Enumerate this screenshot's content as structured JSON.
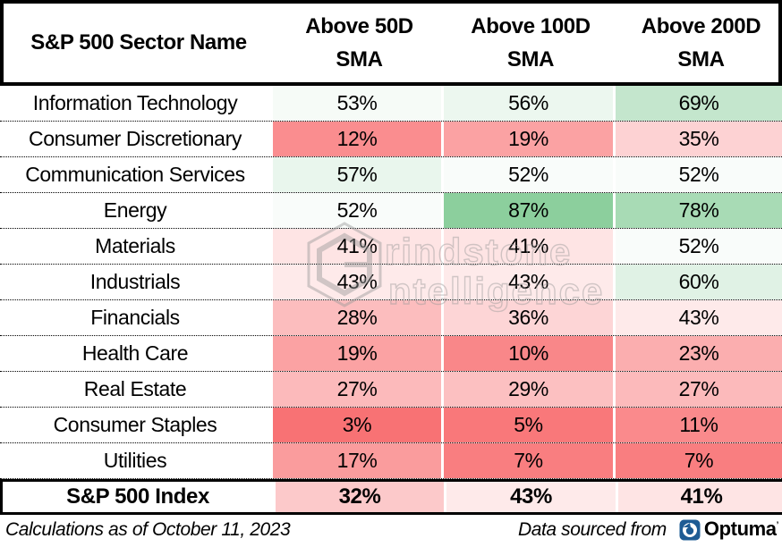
{
  "table": {
    "header": {
      "col0": "S&P 500 Sector Name",
      "cols": [
        {
          "line1": "Above 50D",
          "line2": "SMA"
        },
        {
          "line1": "Above 100D",
          "line2": "SMA"
        },
        {
          "line1": "Above 200D",
          "line2": "SMA"
        }
      ]
    },
    "rows": [
      {
        "name": "Information Technology",
        "cells": [
          "53%",
          "56%",
          "69%"
        ],
        "values": [
          53,
          56,
          69
        ]
      },
      {
        "name": "Consumer Discretionary",
        "cells": [
          "12%",
          "19%",
          "35%"
        ],
        "values": [
          12,
          19,
          35
        ]
      },
      {
        "name": "Communication Services",
        "cells": [
          "57%",
          "52%",
          "52%"
        ],
        "values": [
          57,
          52,
          52
        ]
      },
      {
        "name": "Energy",
        "cells": [
          "52%",
          "87%",
          "78%"
        ],
        "values": [
          52,
          87,
          78
        ]
      },
      {
        "name": "Materials",
        "cells": [
          "41%",
          "41%",
          "52%"
        ],
        "values": [
          41,
          41,
          52
        ]
      },
      {
        "name": "Industrials",
        "cells": [
          "43%",
          "43%",
          "60%"
        ],
        "values": [
          43,
          43,
          60
        ]
      },
      {
        "name": "Financials",
        "cells": [
          "28%",
          "36%",
          "43%"
        ],
        "values": [
          28,
          36,
          43
        ]
      },
      {
        "name": "Health Care",
        "cells": [
          "19%",
          "10%",
          "23%"
        ],
        "values": [
          19,
          10,
          23
        ]
      },
      {
        "name": "Real Estate",
        "cells": [
          "27%",
          "29%",
          "27%"
        ],
        "values": [
          27,
          29,
          27
        ]
      },
      {
        "name": "Consumer Staples",
        "cells": [
          "3%",
          "5%",
          "11%"
        ],
        "values": [
          3,
          5,
          11
        ]
      },
      {
        "name": "Utilities",
        "cells": [
          "17%",
          "7%",
          "7%"
        ],
        "values": [
          17,
          7,
          7
        ]
      }
    ],
    "index_row": {
      "name": "S&P 500 Index",
      "cells": [
        "32%",
        "43%",
        "41%"
      ],
      "values": [
        32,
        43,
        41
      ]
    }
  },
  "heatmap_scale": {
    "min": 0,
    "mid": 50,
    "max": 100,
    "low_color": "#F8696B",
    "mid_color": "#FFFFFF",
    "high_color": "#63BE7B"
  },
  "watermark": {
    "text": "Grindstone Intelligence",
    "line1": "rindstone",
    "line2": "ntelligence"
  },
  "footer": {
    "left": "Calculations as of October 11, 2023",
    "right": "Data sourced from",
    "brand": "Optuma",
    "brand_icon_color": "#1E5C94",
    "brand_text_color": "#123F6B"
  },
  "chart_data": {
    "type": "heatmap",
    "title": "",
    "rows": [
      "Information Technology",
      "Consumer Discretionary",
      "Communication Services",
      "Energy",
      "Materials",
      "Industrials",
      "Financials",
      "Health Care",
      "Real Estate",
      "Consumer Staples",
      "Utilities",
      "S&P 500 Index"
    ],
    "columns": [
      "Above 50D SMA",
      "Above 100D SMA",
      "Above 200D SMA"
    ],
    "values_percent": [
      [
        53,
        56,
        69
      ],
      [
        12,
        19,
        35
      ],
      [
        57,
        52,
        52
      ],
      [
        52,
        87,
        78
      ],
      [
        41,
        41,
        52
      ],
      [
        43,
        43,
        60
      ],
      [
        28,
        36,
        43
      ],
      [
        19,
        10,
        23
      ],
      [
        27,
        29,
        27
      ],
      [
        3,
        5,
        11
      ],
      [
        17,
        7,
        7
      ],
      [
        32,
        43,
        41
      ]
    ],
    "color_scale": {
      "low": "#F8696B",
      "mid": "#FFFFFF",
      "high": "#63BE7B",
      "domain": [
        0,
        50,
        100
      ]
    },
    "as_of": "Calculations as of October 11, 2023",
    "source": "Data sourced from Optuma"
  }
}
